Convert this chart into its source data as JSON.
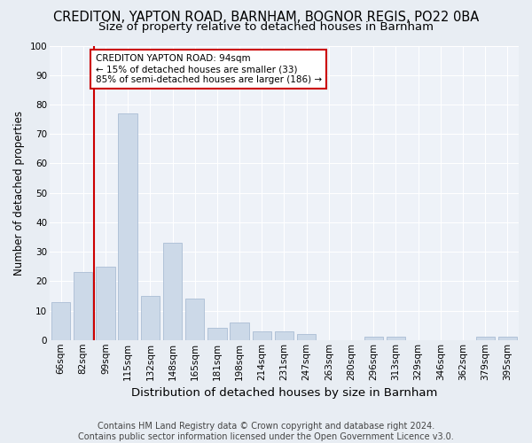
{
  "title_line1": "CREDITON, YAPTON ROAD, BARNHAM, BOGNOR REGIS, PO22 0BA",
  "title_line2": "Size of property relative to detached houses in Barnham",
  "xlabel": "Distribution of detached houses by size in Barnham",
  "ylabel": "Number of detached properties",
  "footer_line1": "Contains HM Land Registry data © Crown copyright and database right 2024.",
  "footer_line2": "Contains public sector information licensed under the Open Government Licence v3.0.",
  "bar_labels": [
    "66sqm",
    "82sqm",
    "99sqm",
    "115sqm",
    "132sqm",
    "148sqm",
    "165sqm",
    "181sqm",
    "198sqm",
    "214sqm",
    "231sqm",
    "247sqm",
    "263sqm",
    "280sqm",
    "296sqm",
    "313sqm",
    "329sqm",
    "346sqm",
    "362sqm",
    "379sqm",
    "395sqm"
  ],
  "bar_values": [
    13,
    23,
    25,
    77,
    15,
    33,
    14,
    4,
    6,
    3,
    3,
    2,
    0,
    0,
    1,
    1,
    0,
    0,
    0,
    1,
    1
  ],
  "bar_color": "#ccd9e8",
  "bar_edge_color": "#aabdd4",
  "vline_position": 1.5,
  "vline_color": "#cc0000",
  "annotation_text": "CREDITON YAPTON ROAD: 94sqm\n← 15% of detached houses are smaller (33)\n85% of semi-detached houses are larger (186) →",
  "annotation_box_facecolor": "#ffffff",
  "annotation_box_edgecolor": "#cc0000",
  "ylim": [
    0,
    100
  ],
  "yticks": [
    0,
    10,
    20,
    30,
    40,
    50,
    60,
    70,
    80,
    90,
    100
  ],
  "background_color": "#e8edf3",
  "plot_background_color": "#eef2f8",
  "grid_color": "#ffffff",
  "title1_fontsize": 10.5,
  "title2_fontsize": 9.5,
  "xlabel_fontsize": 9.5,
  "ylabel_fontsize": 8.5,
  "tick_fontsize": 7.5,
  "annotation_fontsize": 7.5,
  "footer_fontsize": 7
}
